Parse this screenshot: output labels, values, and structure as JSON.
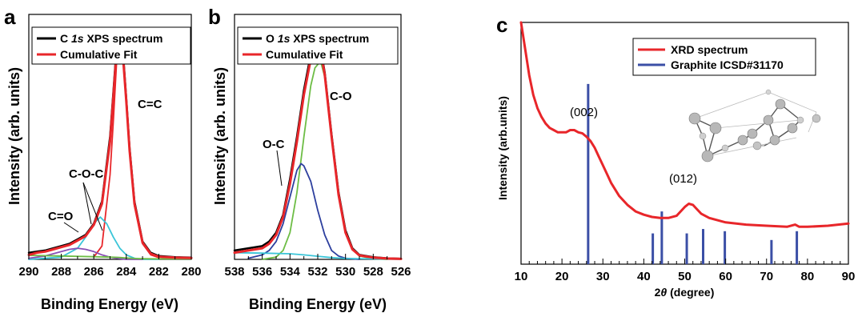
{
  "chart_data": [
    {
      "panel": "a",
      "type": "line",
      "xlabel": "Binding Energy (eV)",
      "ylabel": "Intensity (arb. units)",
      "xlim": [
        290,
        280
      ],
      "ylim": [
        0,
        1.1
      ],
      "x_reversed": true,
      "x_ticks": [
        290,
        288,
        286,
        284,
        282,
        280
      ],
      "legend": {
        "position": "top-left",
        "entries": [
          {
            "label_prefix": "C ",
            "label_italic": "1s",
            "label_suffix": " XPS spectrum",
            "color": "#000000"
          },
          {
            "label": "Cumulative Fit",
            "color": "#e8262a"
          }
        ]
      },
      "series": [
        {
          "name": "C 1s XPS spectrum",
          "color": "#000000",
          "x": [
            290,
            289.5,
            289,
            288.5,
            288,
            287.5,
            287,
            286.5,
            286,
            285.5,
            285,
            284.8,
            284.6,
            284.4,
            284.2,
            284,
            283.8,
            283.5,
            283,
            282.5,
            282,
            281,
            280
          ],
          "y": [
            0.03,
            0.035,
            0.04,
            0.05,
            0.06,
            0.07,
            0.09,
            0.11,
            0.16,
            0.26,
            0.55,
            0.75,
            0.95,
            1.0,
            0.93,
            0.72,
            0.5,
            0.26,
            0.08,
            0.03,
            0.015,
            0.01,
            0.008
          ]
        },
        {
          "name": "Cumulative Fit",
          "color": "#e8262a",
          "x": [
            290,
            289.5,
            289,
            288.5,
            288,
            287.5,
            287,
            286.5,
            286,
            285.5,
            285,
            284.8,
            284.6,
            284.4,
            284.2,
            284,
            283.8,
            283.5,
            283,
            282.5,
            282,
            281,
            280
          ],
          "y": [
            0.02,
            0.03,
            0.035,
            0.045,
            0.055,
            0.065,
            0.085,
            0.105,
            0.155,
            0.25,
            0.53,
            0.73,
            0.93,
            0.98,
            0.91,
            0.71,
            0.49,
            0.25,
            0.075,
            0.025,
            0.012,
            0.008,
            0.006
          ]
        },
        {
          "name": "C=C",
          "color": "#e8262a",
          "x": [
            286,
            285.5,
            285,
            284.8,
            284.6,
            284.4,
            284.2,
            284,
            283.8,
            283.5,
            283,
            282.5,
            282
          ],
          "y": [
            0.01,
            0.06,
            0.38,
            0.62,
            0.88,
            0.97,
            0.9,
            0.7,
            0.48,
            0.24,
            0.07,
            0.02,
            0.008
          ]
        },
        {
          "name": "C-O-C",
          "color": "#3bc5d8",
          "x": [
            290,
            288,
            287,
            286.5,
            286,
            285.6,
            285.2,
            284.8,
            284.4,
            284,
            283.5,
            283,
            282
          ],
          "y": [
            0.0,
            0.01,
            0.05,
            0.1,
            0.16,
            0.19,
            0.16,
            0.1,
            0.05,
            0.02,
            0.005,
            0.0,
            0.0
          ]
        },
        {
          "name": "C=O",
          "color": "#8a4fb5",
          "x": [
            290,
            289,
            288,
            287.5,
            287,
            286.5,
            286,
            285.5,
            285,
            284.5,
            284,
            283
          ],
          "y": [
            0.005,
            0.015,
            0.035,
            0.045,
            0.05,
            0.045,
            0.035,
            0.02,
            0.01,
            0.004,
            0.0,
            0.0
          ]
        },
        {
          "name": "baseline",
          "color": "#6dbd45",
          "x": [
            290,
            288,
            286,
            285,
            284.5,
            284,
            283.5,
            283,
            282,
            280
          ],
          "y": [
            0.018,
            0.015,
            0.012,
            0.01,
            0.009,
            0.006,
            0.004,
            0.003,
            0.002,
            0.002
          ]
        }
      ],
      "annotations": [
        {
          "text": "C=C",
          "x": 283.0,
          "y": 0.72
        },
        {
          "text": "C-O-C",
          "x": 286.9,
          "y": 0.35
        },
        {
          "text": "C=O",
          "x": 288.6,
          "y": 0.14
        }
      ]
    },
    {
      "panel": "b",
      "type": "line",
      "xlabel": "Binding Energy (eV)",
      "ylabel": "Intensity (arb. units)",
      "xlim": [
        538,
        526
      ],
      "ylim": [
        0,
        1.1
      ],
      "x_reversed": true,
      "x_ticks": [
        538,
        536,
        534,
        532,
        530,
        528,
        526
      ],
      "legend": {
        "position": "top-left",
        "entries": [
          {
            "label_prefix": "O ",
            "label_italic": "1s",
            "label_suffix": " XPS spectrum",
            "color": "#000000"
          },
          {
            "label": "Cumulative Fit",
            "color": "#e8262a"
          }
        ]
      },
      "series": [
        {
          "name": "O 1s XPS spectrum",
          "color": "#000000",
          "x": [
            538,
            537,
            536,
            535.5,
            535,
            534.5,
            534,
            533.5,
            533,
            532.5,
            532.2,
            532,
            531.8,
            531.5,
            531,
            530.5,
            530,
            529.5,
            529,
            528,
            527,
            526
          ],
          "y": [
            0.04,
            0.05,
            0.06,
            0.08,
            0.12,
            0.2,
            0.36,
            0.55,
            0.76,
            0.92,
            0.97,
            0.98,
            0.95,
            0.84,
            0.56,
            0.3,
            0.13,
            0.05,
            0.02,
            0.01,
            0.005,
            0.003
          ]
        },
        {
          "name": "Cumulative Fit",
          "color": "#e8262a",
          "x": [
            538,
            537,
            536,
            535.5,
            535,
            534.5,
            534,
            533.5,
            533,
            532.5,
            532.2,
            532,
            531.8,
            531.5,
            531,
            530.5,
            530,
            529.5,
            529,
            528,
            527,
            526
          ],
          "y": [
            0.03,
            0.04,
            0.05,
            0.07,
            0.11,
            0.19,
            0.34,
            0.53,
            0.74,
            0.9,
            0.96,
            0.97,
            0.94,
            0.83,
            0.55,
            0.29,
            0.12,
            0.045,
            0.018,
            0.008,
            0.004,
            0.002
          ]
        },
        {
          "name": "C-O",
          "color": "#6dbd45",
          "x": [
            536,
            535,
            534.5,
            534,
            533.5,
            533,
            532.5,
            532.2,
            531.8,
            531.5,
            531,
            530.5,
            530,
            529.5,
            529,
            528,
            527
          ],
          "y": [
            0.0,
            0.01,
            0.04,
            0.12,
            0.3,
            0.55,
            0.78,
            0.86,
            0.89,
            0.82,
            0.56,
            0.3,
            0.12,
            0.045,
            0.015,
            0.003,
            0.0
          ]
        },
        {
          "name": "O-C",
          "color": "#2d3f9e",
          "x": [
            537,
            536,
            535.5,
            535,
            534.5,
            534,
            533.5,
            533.2,
            533,
            532.5,
            532,
            531.5,
            531,
            530.5,
            530,
            529
          ],
          "y": [
            0.005,
            0.02,
            0.04,
            0.08,
            0.16,
            0.28,
            0.4,
            0.43,
            0.42,
            0.35,
            0.22,
            0.11,
            0.04,
            0.015,
            0.005,
            0.0
          ]
        },
        {
          "name": "baseline",
          "color": "#3bc5d8",
          "x": [
            538,
            536,
            534,
            533,
            532,
            531,
            530,
            528,
            526
          ],
          "y": [
            0.03,
            0.028,
            0.025,
            0.02,
            0.014,
            0.008,
            0.004,
            0.002,
            0.001
          ]
        }
      ],
      "annotations": [
        {
          "text": "C-O",
          "x": 530.8,
          "y": 0.94
        },
        {
          "text": "O-C",
          "x": 535.0,
          "y": 0.55
        }
      ]
    },
    {
      "panel": "c",
      "type": "line",
      "xlabel_prefix": "2",
      "xlabel_italic": "θ",
      "xlabel_suffix": " (degree)",
      "ylabel": "Intensity (arb.units)",
      "xlim": [
        10,
        90
      ],
      "ylim": [
        0,
        1.1
      ],
      "x_ticks": [
        10,
        20,
        30,
        40,
        50,
        60,
        70,
        80,
        90
      ],
      "legend": {
        "position": "top-right",
        "entries": [
          {
            "label": "XRD spectrum",
            "color": "#e8262a"
          },
          {
            "label": "Graphite ICSD#31170",
            "color": "#3b4fa6"
          }
        ]
      },
      "series": [
        {
          "name": "XRD spectrum",
          "color": "#e8262a",
          "x": [
            10,
            11,
            12,
            13,
            14,
            15,
            16,
            17,
            18,
            19,
            20,
            21,
            22,
            23,
            24,
            25,
            26,
            27,
            28,
            29,
            30,
            31,
            32,
            34,
            36,
            38,
            40,
            42,
            44,
            46,
            48,
            50,
            51,
            52,
            53,
            54,
            56,
            58,
            60,
            65,
            70,
            75,
            77,
            78,
            80,
            85,
            90
          ],
          "y": [
            1.1,
            0.98,
            0.86,
            0.77,
            0.71,
            0.67,
            0.64,
            0.62,
            0.61,
            0.6,
            0.6,
            0.6,
            0.61,
            0.61,
            0.6,
            0.595,
            0.58,
            0.56,
            0.53,
            0.49,
            0.45,
            0.41,
            0.37,
            0.31,
            0.27,
            0.24,
            0.225,
            0.215,
            0.21,
            0.21,
            0.22,
            0.26,
            0.275,
            0.27,
            0.25,
            0.23,
            0.21,
            0.2,
            0.19,
            0.18,
            0.175,
            0.17,
            0.18,
            0.17,
            0.17,
            0.175,
            0.185
          ]
        },
        {
          "name": "Graphite ICSD#31170",
          "color": "#3b4fa6",
          "type": "stick",
          "x": [
            26.4,
            42.2,
            44.4,
            50.5,
            54.5,
            59.8,
            71.2,
            77.4
          ],
          "y": [
            0.82,
            0.14,
            0.24,
            0.14,
            0.16,
            0.15,
            0.11,
            0.15
          ]
        }
      ],
      "annotations": [
        {
          "text": "(002)",
          "x": 24.5,
          "y": 0.68
        },
        {
          "text": "(012)",
          "x": 51.5,
          "y": 0.34
        }
      ]
    }
  ],
  "colors": {
    "data_black": "#000000",
    "fit_red": "#e8262a",
    "cyan": "#3bc5d8",
    "green": "#6dbd45",
    "purple": "#8a4fb5",
    "navy": "#2d3f9e",
    "stick_blue": "#3b4fa6"
  }
}
